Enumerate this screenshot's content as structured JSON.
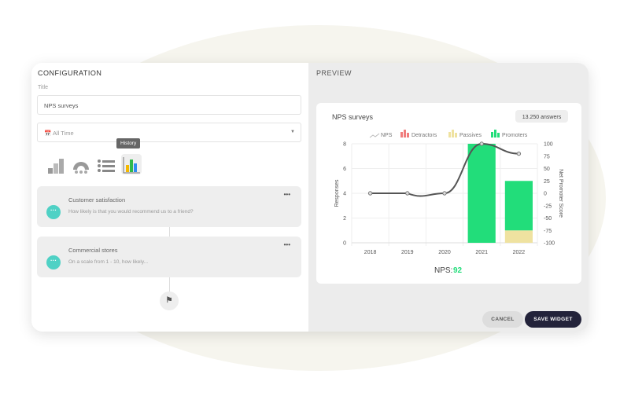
{
  "config": {
    "heading": "CONFIGURATION",
    "title_label": "Title",
    "title_value": "NPS surveys",
    "date_range": "All Time",
    "tooltip": "History",
    "chart_types": [
      "bar-chart-icon",
      "gauge-icon",
      "list-icon",
      "history-chart-icon"
    ],
    "questions": [
      {
        "title": "Customer satisfaction",
        "subtitle": "How likely is that you would recommend us to a friend?"
      },
      {
        "title": "Commercial stores",
        "subtitle": "On a scale from 1 - 10, how likely..."
      }
    ],
    "more": "•••",
    "end_icon": "flag-icon"
  },
  "preview": {
    "heading": "PREVIEW",
    "cancel": "CANCEL",
    "save": "SAVE WIDGET",
    "answers_badge": "13.250 answers",
    "nps_label": "NPS:",
    "nps_value": "92"
  },
  "colors": {
    "detractors": "#f07c7c",
    "passives": "#efe2a0",
    "promoters": "#22dd7a",
    "nps_line": "#555555",
    "accent": "#4fd1c5",
    "save_btn": "#23233a"
  },
  "chart_data": {
    "type": "bar+line",
    "title": "NPS surveys",
    "categories": [
      "2018",
      "2019",
      "2020",
      "2021",
      "2022"
    ],
    "legend": [
      "NPS",
      "Detractors",
      "Passives",
      "Promoters"
    ],
    "legend_position": "top",
    "ylabel": "Responses",
    "ylim": [
      0,
      8
    ],
    "yticks": [
      "0",
      "2",
      "4",
      "6",
      "8"
    ],
    "y2label": "Net Promoter Score",
    "y2lim": [
      -100,
      100
    ],
    "y2ticks": [
      "-100",
      "-75",
      "-50",
      "-25",
      "0",
      "25",
      "50",
      "75",
      "100"
    ],
    "series": [
      {
        "name": "Detractors",
        "type": "stacked-bar",
        "values": [
          0,
          0,
          0,
          0,
          0
        ]
      },
      {
        "name": "Passives",
        "type": "stacked-bar",
        "values": [
          0,
          0,
          0,
          0,
          1
        ]
      },
      {
        "name": "Promoters",
        "type": "stacked-bar",
        "values": [
          0,
          0,
          0,
          8,
          4
        ]
      },
      {
        "name": "NPS",
        "type": "line",
        "axis": "right",
        "values": [
          0,
          0,
          0,
          100,
          80
        ]
      }
    ],
    "grid": true
  }
}
